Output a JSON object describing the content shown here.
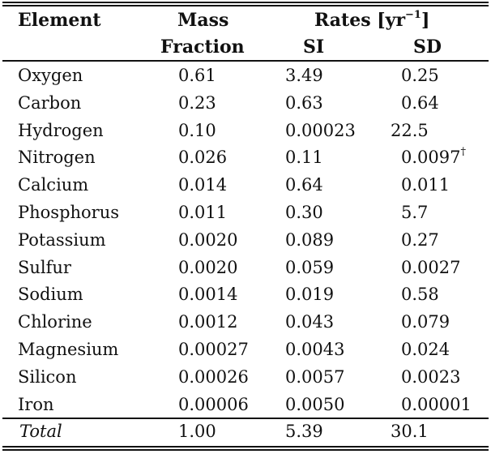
{
  "table": {
    "headers": {
      "element": "Element",
      "mass_line1": "Mass",
      "mass_line2": "Fraction",
      "rates_prefix": "Rates [yr",
      "rates_exp": "−1",
      "rates_suffix": "]",
      "si": "SI",
      "sd": "SD"
    },
    "rows": [
      {
        "element": "Oxygen",
        "mass": "0.61",
        "si": "3.49",
        "sd": "0.25",
        "sd_note": ""
      },
      {
        "element": "Carbon",
        "mass": "0.23",
        "si": "0.63",
        "sd": "0.64",
        "sd_note": ""
      },
      {
        "element": "Hydrogen",
        "mass": "0.10",
        "si": "0.00023",
        "sd": "22.5",
        "sd_note": ""
      },
      {
        "element": "Nitrogen",
        "mass": "0.026",
        "si": "0.11",
        "sd": "0.0097",
        "sd_note": "†"
      },
      {
        "element": "Calcium",
        "mass": "0.014",
        "si": "0.64",
        "sd": "0.011",
        "sd_note": ""
      },
      {
        "element": "Phosphorus",
        "mass": "0.011",
        "si": "0.30",
        "sd": "5.7",
        "sd_note": ""
      },
      {
        "element": "Potassium",
        "mass": "0.0020",
        "si": "0.089",
        "sd": "0.27",
        "sd_note": ""
      },
      {
        "element": "Sulfur",
        "mass": "0.0020",
        "si": "0.059",
        "sd": "0.0027",
        "sd_note": ""
      },
      {
        "element": "Sodium",
        "mass": "0.0014",
        "si": "0.019",
        "sd": "0.58",
        "sd_note": ""
      },
      {
        "element": "Chlorine",
        "mass": "0.0012",
        "si": "0.043",
        "sd": "0.079",
        "sd_note": ""
      },
      {
        "element": "Magnesium",
        "mass": "0.00027",
        "si": "0.0043",
        "sd": "0.024",
        "sd_note": ""
      },
      {
        "element": "Silicon",
        "mass": "0.00026",
        "si": "0.0057",
        "sd": "0.0023",
        "sd_note": ""
      },
      {
        "element": "Iron",
        "mass": "0.00006",
        "si": "0.0050",
        "sd": "0.00001",
        "sd_note": ""
      }
    ],
    "total": {
      "label": "Total",
      "mass": "1.00",
      "si": "5.39",
      "sd": "30.1"
    }
  }
}
